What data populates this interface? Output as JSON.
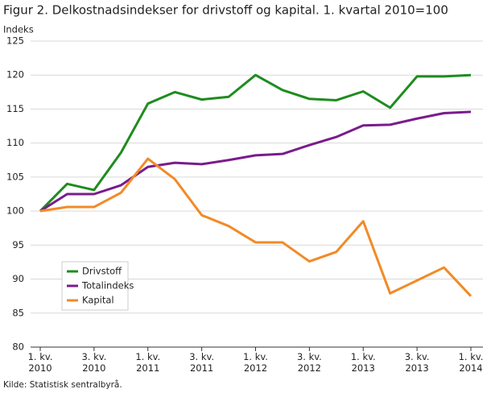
{
  "chart_data": {
    "type": "line",
    "title": "Figur 2. Delkostnadsindekser for drivstoff og kapital. 1. kvartal 2010=100",
    "y_label": "Indeks",
    "source": "Kilde: Statistisk sentralbyrå.",
    "categories": [
      "1. kv. 2010",
      null,
      "3. kv. 2010",
      null,
      "1. kv. 2011",
      null,
      "3. kv. 2011",
      null,
      "1. kv. 2012",
      null,
      "3. kv. 2012",
      null,
      "1. kv. 2013",
      null,
      "3. kv. 2013",
      null,
      "1. kv. 2014"
    ],
    "series": [
      {
        "name": "Drivstoff",
        "color": "#1e8c1e",
        "values": [
          100,
          104.0,
          103.1,
          108.6,
          115.8,
          117.5,
          116.4,
          116.8,
          120.0,
          117.8,
          116.5,
          116.3,
          117.6,
          115.2,
          119.8,
          119.8,
          120.0
        ]
      },
      {
        "name": "Totalindeks",
        "color": "#7a1c8c",
        "values": [
          100,
          102.5,
          102.5,
          103.8,
          106.5,
          107.1,
          106.9,
          107.5,
          108.2,
          108.4,
          109.7,
          110.9,
          112.6,
          112.7,
          113.6,
          114.4,
          114.6
        ]
      },
      {
        "name": "Kapital",
        "color": "#f28a26",
        "values": [
          100,
          100.6,
          100.6,
          102.7,
          107.7,
          104.7,
          99.4,
          97.8,
          95.4,
          95.4,
          92.6,
          94.0,
          98.5,
          87.9,
          89.8,
          91.7,
          87.5
        ]
      }
    ],
    "ylim": [
      80,
      125
    ],
    "yticks": [
      80,
      85,
      90,
      95,
      100,
      105,
      110,
      115,
      120,
      125
    ],
    "grid": true,
    "legend": "lower left"
  }
}
